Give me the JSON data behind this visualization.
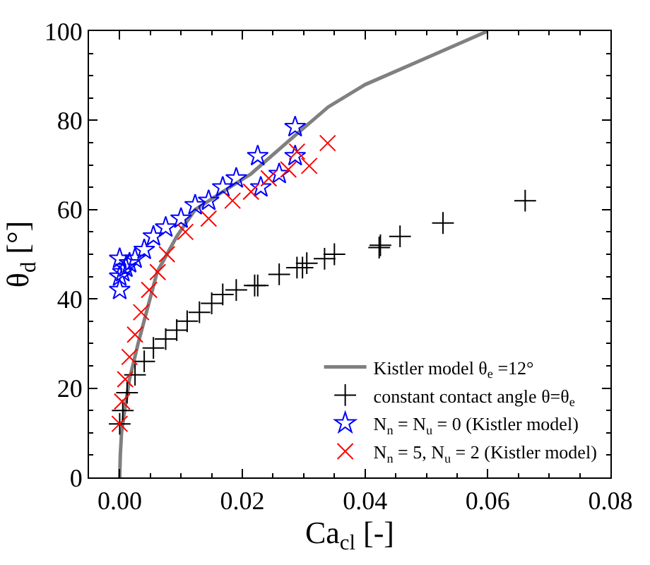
{
  "chart_data": {
    "type": "scatter",
    "xlabel": "Ca$_{cl}$ [-]",
    "ylabel": "θ$_{d}$ [°]",
    "xlim": [
      -0.005,
      0.08
    ],
    "ylim": [
      0,
      100
    ],
    "xticks": [
      {
        "value": 0,
        "label": "0.00"
      },
      {
        "value": 0.02,
        "label": "0.02"
      },
      {
        "value": 0.04,
        "label": "0.04"
      },
      {
        "value": 0.06,
        "label": "0.06"
      },
      {
        "value": 0.08,
        "label": "0.08"
      }
    ],
    "yticks": [
      0,
      20,
      40,
      60,
      80,
      100
    ],
    "legend": "bottom right",
    "series": [
      {
        "name": "Kistler model θ$_{e}$ =12°",
        "type": "line",
        "color": "#808080",
        "marker": "none",
        "line_style": "solid",
        "x": [
          0,
          0.0001,
          0.0003,
          0.0008,
          0.0016,
          0.003,
          0.0061,
          0.0093,
          0.0123,
          0.0168,
          0.0214,
          0.0289,
          0.034,
          0.04,
          0.05,
          0.06
        ],
        "values": [
          0,
          5,
          10,
          15,
          22,
          30,
          46,
          54,
          60,
          64,
          68,
          77,
          83,
          88,
          94,
          100
        ]
      },
      {
        "name": "constant contact angle θ=θ$_{e}$",
        "color": "#000000",
        "marker": "cross",
        "x": [
          0,
          0.0005,
          0.0012,
          0.0025,
          0.004,
          0.0055,
          0.0075,
          0.0093,
          0.011,
          0.013,
          0.015,
          0.0168,
          0.019,
          0.0225,
          0.022,
          0.026,
          0.0289,
          0.0298,
          0.0305,
          0.0334,
          0.035,
          0.0423,
          0.0425,
          0.0457,
          0.0527,
          0.0661
        ],
        "values": [
          12,
          15,
          19,
          23,
          26,
          29,
          31,
          33,
          35,
          37,
          39,
          41,
          42,
          43,
          43,
          45.5,
          47,
          47,
          48,
          49,
          50,
          51.5,
          52,
          54,
          57,
          62
        ]
      },
      {
        "name": "N$_{n}$ = N$_{u}$ = 0 (Kistler model)",
        "color": "#0000ff",
        "marker": "star",
        "x": [
          0,
          0,
          0,
          0.0005,
          0.001,
          0.0016,
          0.0025,
          0.004,
          0.0055,
          0.0075,
          0.01,
          0.0123,
          0.0145,
          0.0168,
          0.019,
          0.0225,
          0.023,
          0.026,
          0.0286,
          0.0286
        ],
        "values": [
          42,
          45,
          49,
          46,
          47,
          48,
          49,
          51,
          54,
          56,
          58,
          61,
          62,
          65,
          67,
          72,
          65,
          68,
          78.5,
          72
        ]
      },
      {
        "name": "N$_{n}$ = 5, N$_{u}$ = 2 (Kistler model)",
        "color": "#ff0000",
        "marker": "x",
        "x": [
          0,
          0.0004,
          0.0009,
          0.0016,
          0.0025,
          0.0035,
          0.0048,
          0.0062,
          0.0077,
          0.0107,
          0.0145,
          0.0184,
          0.0214,
          0.0243,
          0.0275,
          0.0289,
          0.0309,
          0.0339
        ],
        "values": [
          12,
          17,
          22,
          27,
          32,
          37,
          42,
          46,
          50,
          55,
          58,
          62,
          64,
          67,
          69,
          73,
          69.8,
          74.9
        ]
      }
    ]
  }
}
